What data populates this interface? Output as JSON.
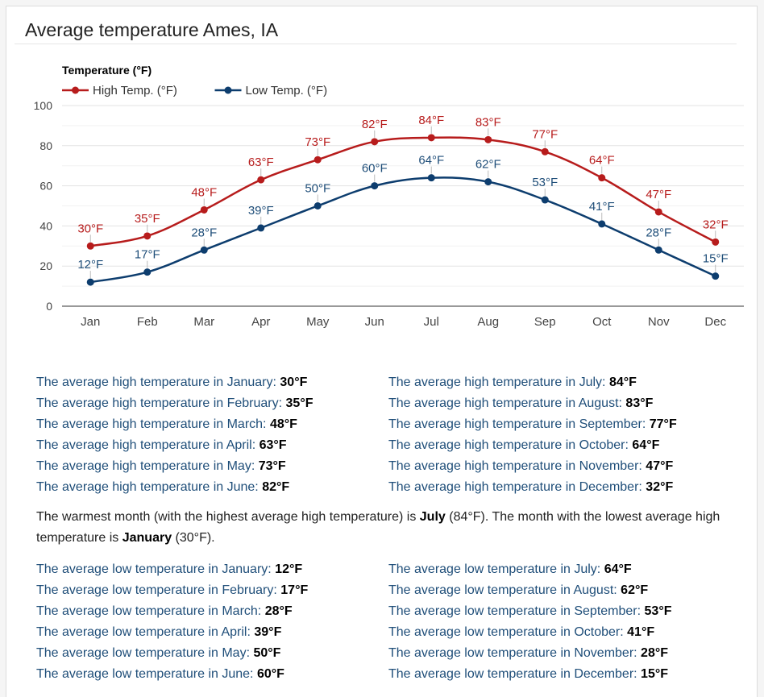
{
  "page": {
    "title": "Average temperature Ames, IA"
  },
  "chart_data": {
    "type": "line",
    "ylabel": "Temperature (°F)",
    "categories": [
      "Jan",
      "Feb",
      "Mar",
      "Apr",
      "May",
      "Jun",
      "Jul",
      "Aug",
      "Sep",
      "Oct",
      "Nov",
      "Dec"
    ],
    "ylim": [
      0,
      100
    ],
    "yticks": [
      0,
      20,
      40,
      60,
      80,
      100
    ],
    "grid": true,
    "legend": "top-left",
    "series": [
      {
        "name": "High Temp. (°F)",
        "color": "#b71c1c",
        "label_color": "#b71c1c",
        "values": [
          30,
          35,
          48,
          63,
          73,
          82,
          84,
          83,
          77,
          64,
          47,
          32
        ]
      },
      {
        "name": "Low Temp. (°F)",
        "color": "#0d3d6e",
        "label_color": "#1f4e79",
        "values": [
          12,
          17,
          28,
          39,
          50,
          60,
          64,
          62,
          53,
          41,
          28,
          15
        ]
      }
    ],
    "data_label_suffix": "°F"
  },
  "high_list": {
    "rows": [
      {
        "label": "The average high temperature in January:",
        "value": "30°F"
      },
      {
        "label": "The average high temperature in February:",
        "value": "35°F"
      },
      {
        "label": "The average high temperature in March:",
        "value": "48°F"
      },
      {
        "label": "The average high temperature in April:",
        "value": "63°F"
      },
      {
        "label": "The average high temperature in May:",
        "value": "73°F"
      },
      {
        "label": "The average high temperature in June:",
        "value": "82°F"
      },
      {
        "label": "The average high temperature in July:",
        "value": "84°F"
      },
      {
        "label": "The average high temperature in August:",
        "value": "83°F"
      },
      {
        "label": "The average high temperature in September:",
        "value": "77°F"
      },
      {
        "label": "The average high temperature in October:",
        "value": "64°F"
      },
      {
        "label": "The average high temperature in November:",
        "value": "47°F"
      },
      {
        "label": "The average high temperature in December:",
        "value": "32°F"
      }
    ]
  },
  "summary": {
    "part1": "The warmest month (with the highest average high temperature) is ",
    "warmest_month": "July",
    "part2": " (84°F). The month with the lowest average high temperature is ",
    "coldest_month": "January",
    "part3": " (30°F)."
  },
  "low_list": {
    "rows": [
      {
        "label": "The average low temperature in January:",
        "value": "12°F"
      },
      {
        "label": "The average low temperature in February:",
        "value": "17°F"
      },
      {
        "label": "The average low temperature in March:",
        "value": "28°F"
      },
      {
        "label": "The average low temperature in April:",
        "value": "39°F"
      },
      {
        "label": "The average low temperature in May:",
        "value": "50°F"
      },
      {
        "label": "The average low temperature in June:",
        "value": "60°F"
      },
      {
        "label": "The average low temperature in July:",
        "value": "64°F"
      },
      {
        "label": "The average low temperature in August:",
        "value": "62°F"
      },
      {
        "label": "The average low temperature in September:",
        "value": "53°F"
      },
      {
        "label": "The average low temperature in October:",
        "value": "41°F"
      },
      {
        "label": "The average low temperature in November:",
        "value": "28°F"
      },
      {
        "label": "The average low temperature in December:",
        "value": "15°F"
      }
    ]
  }
}
